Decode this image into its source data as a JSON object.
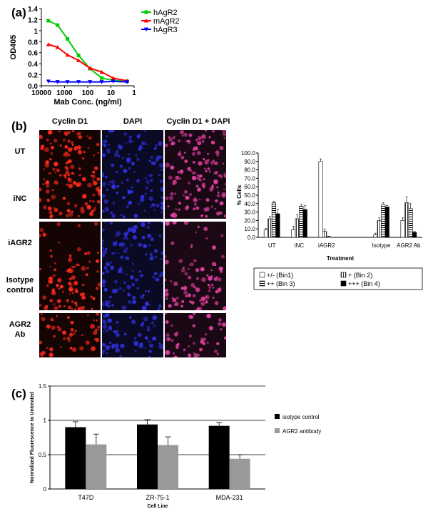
{
  "panels": {
    "a": "(a)",
    "b": "(b)",
    "c": "(c)"
  },
  "chart_data": [
    {
      "id": "a",
      "type": "line",
      "xlabel": "Mab Conc. (ng/ml)",
      "ylabel": "OD405",
      "x_scale": "log",
      "x_reversed": true,
      "x_ticks": [
        "10000",
        "1000",
        "100",
        "10",
        "1"
      ],
      "ylim": [
        0,
        1.4
      ],
      "y_ticks": [
        "0.0",
        "0.2",
        "0.4",
        "0.6",
        "0.8",
        "1",
        "1.2",
        "1.4"
      ],
      "legend_position": "top-right",
      "x": [
        5000,
        2000,
        750,
        250,
        80,
        25,
        8,
        2
      ],
      "series": [
        {
          "name": "hAgR2",
          "color": "#00cc00",
          "marker": "square",
          "values": [
            1.18,
            1.1,
            0.85,
            0.55,
            0.31,
            0.14,
            0.1,
            0.08
          ]
        },
        {
          "name": "mAgR2",
          "color": "#ff0000",
          "marker": "triangle",
          "values": [
            0.75,
            0.7,
            0.56,
            0.46,
            0.32,
            0.25,
            0.14,
            0.09
          ]
        },
        {
          "name": "hAgR3",
          "color": "#0000ff",
          "marker": "triangle-down",
          "values": [
            0.08,
            0.07,
            0.07,
            0.07,
            0.07,
            0.07,
            0.08,
            0.07
          ]
        }
      ]
    },
    {
      "id": "b",
      "type": "bar",
      "xlabel": "Treatment",
      "ylabel": "% Cells",
      "ylim": [
        0,
        100
      ],
      "y_ticks": [
        "0.0",
        "10.0",
        "20.0",
        "30.0",
        "40.0",
        "50.0",
        "60.0",
        "70.0",
        "80.0",
        "90.0",
        "100.0"
      ],
      "categories": [
        "UT",
        "iNC",
        "iAGR2",
        "",
        "Isotype",
        "AGR2 Ab"
      ],
      "legend_position": "bottom",
      "series": [
        {
          "name": "+/- (Bin1)",
          "pattern": "white",
          "values": [
            9,
            9,
            90,
            null,
            3,
            20
          ],
          "errors": [
            1.5,
            4,
            3,
            null,
            2,
            3
          ]
        },
        {
          "name": "+ (Bin 2)",
          "pattern": "vertical",
          "values": [
            22,
            22,
            7,
            null,
            20,
            41
          ],
          "errors": [
            3,
            5,
            3,
            null,
            3,
            7
          ]
        },
        {
          "name": "++ (Bin 3)",
          "pattern": "horizontal",
          "values": [
            41,
            37,
            1,
            null,
            39,
            34
          ],
          "errors": [
            2,
            2,
            0.5,
            null,
            2,
            6
          ]
        },
        {
          "name": "+++ (Bin 4)",
          "pattern": "black",
          "values": [
            28,
            33,
            0,
            null,
            36,
            6
          ],
          "errors": [
            5,
            5,
            0,
            null,
            2,
            1
          ]
        }
      ]
    },
    {
      "id": "c",
      "type": "bar",
      "xlabel": "Cell Line",
      "ylabel": "Normalized Fluorescence to Untreated",
      "ylim": [
        0,
        1.5
      ],
      "y_ticks": [
        "0",
        "0.5",
        "1",
        "1.5"
      ],
      "categories": [
        "T47D",
        "ZR-75-1",
        "MDA-231"
      ],
      "legend_position": "right",
      "series": [
        {
          "name": "isotype control",
          "color": "#000000",
          "values": [
            0.9,
            0.94,
            0.92
          ],
          "errors": [
            0.08,
            0.07,
            0.05
          ]
        },
        {
          "name": "AGR2 antibody",
          "color": "#999999",
          "values": [
            0.65,
            0.64,
            0.44
          ],
          "errors": [
            0.15,
            0.12,
            0.06
          ]
        }
      ]
    }
  ],
  "micrographs": {
    "columns": [
      "Cyclin D1",
      "DAPI",
      "Cyclin D1 + DAPI"
    ],
    "rows": [
      {
        "label_line1": "UT",
        "label_line2": "",
        "red_density": 0.85
      },
      {
        "label_line1": "iNC",
        "label_line2": "",
        "red_density": 0.9
      },
      {
        "label_line1": "iAGR2",
        "label_line2": "",
        "red_density": 0.2
      },
      {
        "label_line1": "Isotype",
        "label_line2": "control",
        "red_density": 0.85
      },
      {
        "label_line1": "AGR2",
        "label_line2": "Ab",
        "red_density": 0.55
      }
    ]
  },
  "colors": {
    "red_stain": "#ff2a1a",
    "blue_stain": "#3030e0",
    "merge_stain": "#e040a0"
  }
}
